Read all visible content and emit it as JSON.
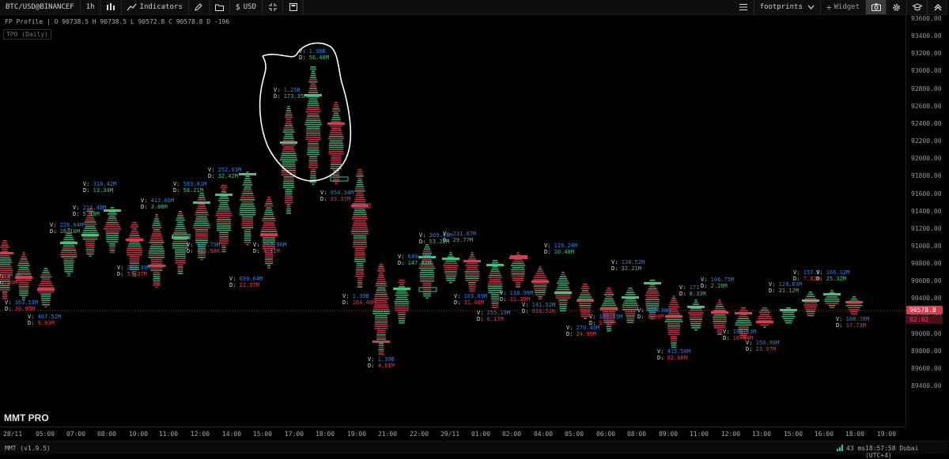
{
  "toolbar": {
    "symbol": "BTC/USD@BINANCEF",
    "timeframe": "1h",
    "indicators_label": "Indicators",
    "currency_label": "USD",
    "layout_label": "footprints",
    "widget_label": "Widget"
  },
  "chart_info": {
    "ohlc": "FP Profile | O 90738.5 H 90738.5 L 90572.8 C 90578.8 D -196",
    "tpo_label": "TPO (Daily)"
  },
  "price_axis": {
    "labels": [
      "93600.00",
      "93400.00",
      "93200.00",
      "93000.00",
      "92800.00",
      "92600.00",
      "92400.00",
      "92200.00",
      "92000.00",
      "91800.00",
      "91600.00",
      "91400.00",
      "91200.00",
      "91000.00",
      "90800.00",
      "90600.00",
      "90400.00",
      "90200.00",
      "90000.00",
      "89800.00",
      "89600.00",
      "89400.00"
    ],
    "current_price": "90578.8",
    "countdown": "02:02"
  },
  "time_axis": {
    "labels": [
      "28/11",
      "05:00",
      "07:00",
      "08:00",
      "10:00",
      "11:00",
      "12:00",
      "14:00",
      "15:00",
      "17:00",
      "18:00",
      "19:00",
      "21:00",
      "22:00",
      "29/11",
      "01:00",
      "02:00",
      "04:00",
      "05:00",
      "06:00",
      "08:00",
      "09:00",
      "11:00",
      "12:00",
      "13:00",
      "15:00",
      "16:00",
      "18:00",
      "19:00"
    ]
  },
  "logo": "MMT PRO",
  "status": {
    "version": "MMT (v1.9.5)",
    "latency": "43 ms",
    "clock": "18:57:58 Dubai (UTC+4)"
  },
  "colors": {
    "up": "#4bbf7f",
    "down": "#e0394e",
    "volume": "#3a7bd5",
    "annotation": "#ffffff"
  },
  "annotations": [
    {
      "v": "1.98B",
      "d": "56.40M",
      "dir": "up"
    },
    {
      "v": "1.25B",
      "d": "173.35M",
      "dir": "up"
    },
    {
      "v": "954.34M",
      "d": "33.37M",
      "dir": "dn"
    },
    {
      "v": "252.63M",
      "d": "32.42M",
      "dir": "up"
    },
    {
      "v": "583.81M",
      "d": "58.21M",
      "dir": "up"
    },
    {
      "v": "318.42M",
      "d": "13.34M",
      "dir": "up"
    },
    {
      "v": "413.66M",
      "d": "3.08M",
      "dir": "up"
    },
    {
      "v": "214.48M",
      "d": "5.18M",
      "dir": "up"
    },
    {
      "v": "226.04M",
      "d": "16.10M",
      "dir": "up"
    },
    {
      "v": "429.75M",
      "d": "403.58K",
      "dir": "dn"
    },
    {
      "v": "262.96M",
      "d": "4.11M",
      "dir": "dn"
    },
    {
      "v": "287.39M",
      "d": "57.27M",
      "dir": "dn"
    },
    {
      "v": "6.30",
      "d": "20M",
      "dir": "dn"
    },
    {
      "v": "363.53M",
      "d": "30.95M",
      "dir": "dn"
    },
    {
      "v": "407.52M",
      "d": "9.03M",
      "dir": "dn"
    },
    {
      "v": "699.64M",
      "d": "22.57M",
      "dir": "dn"
    },
    {
      "v": "1.39B",
      "d": "164.48M",
      "dir": "dn"
    },
    {
      "v": "1.39B",
      "d": "4.81M",
      "dir": "dn"
    },
    {
      "v": "649.47M",
      "d": "147.92M",
      "dir": "up"
    },
    {
      "v": "309.49M",
      "d": "53.22M",
      "dir": "up"
    },
    {
      "v": "231.67M",
      "d": "29.77M",
      "dir": "up"
    },
    {
      "v": "165.69M",
      "d": "31.46M",
      "dir": "dn"
    },
    {
      "v": "138.98M",
      "d": "31.39M",
      "dir": "dn"
    },
    {
      "v": "255.19M",
      "d": "6.17M",
      "dir": "dn"
    },
    {
      "v": "126.24M",
      "d": "10.48M",
      "dir": "up"
    },
    {
      "v": "141.52M",
      "d": "916.51K",
      "dir": "dn"
    },
    {
      "v": "270.45M",
      "d": "24.99M",
      "dir": "dn"
    },
    {
      "v": "102.15M",
      "d": "5.85M",
      "dir": "dn"
    },
    {
      "v": "138.52M",
      "d": "32.21M",
      "dir": "up"
    },
    {
      "v": "115.38M",
      "d": "3.99M",
      "dir": "dn"
    },
    {
      "v": "415.58M",
      "d": "82.60M",
      "dir": "dn"
    },
    {
      "v": "171",
      "d": "8.33M",
      "dir": "up"
    },
    {
      "v": "108.75M",
      "d": "2.20M",
      "dir": "up"
    },
    {
      "v": "188.53M",
      "d": "10.04M",
      "dir": "dn"
    },
    {
      "v": "150.98M",
      "d": "23.97M",
      "dir": "dn"
    },
    {
      "v": "128.03M",
      "d": "21.12M",
      "dir": "up"
    },
    {
      "v": "157.9",
      "d": "7.82M",
      "dir": "dn"
    },
    {
      "v": "166.12M",
      "d": "25.32M",
      "dir": "up"
    },
    {
      "v": "108.78M",
      "d": "17.73M",
      "dir": "dn"
    }
  ]
}
